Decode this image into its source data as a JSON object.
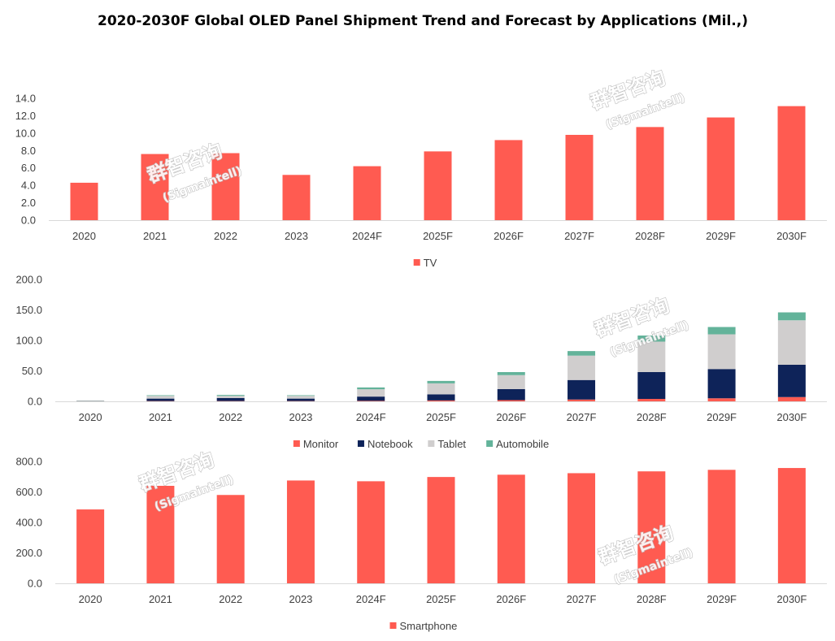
{
  "title": "2020-2030F Global OLED Panel Shipment Trend and Forecast by Applications (Mil.,)",
  "colors": {
    "TV": "#FF5B51",
    "Monitor": "#FF5B51",
    "Notebook": "#0E2359",
    "Tablet": "#D0CECE",
    "Automobile": "#63B39A",
    "Smartphone": "#FF5B51",
    "axis": "#D9D9D9",
    "text": "#404040"
  },
  "watermark": {
    "cn": "群智咨询",
    "en": "(Sigmaintell)"
  },
  "chart_data": [
    {
      "type": "bar",
      "categories": [
        "2020",
        "2021",
        "2022",
        "2023",
        "2024F",
        "2025F",
        "2026F",
        "2027F",
        "2028F",
        "2029F",
        "2030F"
      ],
      "series": [
        {
          "name": "TV",
          "values": [
            4.3,
            7.6,
            7.7,
            5.2,
            6.2,
            7.9,
            9.2,
            9.8,
            10.7,
            11.8,
            13.1
          ]
        }
      ],
      "ylim": [
        0,
        14
      ],
      "yticks": [
        "0.0",
        "2.0",
        "4.0",
        "6.0",
        "8.0",
        "10.0",
        "12.0",
        "14.0"
      ],
      "legend": "bottom"
    },
    {
      "type": "stacked-bar",
      "categories": [
        "2020",
        "2021",
        "2022",
        "2023",
        "2024F",
        "2025F",
        "2026F",
        "2027F",
        "2028F",
        "2029F",
        "2030F"
      ],
      "series": [
        {
          "name": "Monitor",
          "values": [
            0.2,
            0.5,
            0.5,
            0.5,
            0.8,
            1.5,
            2.0,
            3.0,
            4.0,
            5.0,
            7.0
          ]
        },
        {
          "name": "Notebook",
          "values": [
            0.3,
            4.0,
            5.0,
            4.0,
            7.0,
            10.0,
            18.0,
            32.0,
            44.0,
            48.0,
            53.0
          ]
        },
        {
          "name": "Tablet",
          "values": [
            0.5,
            4.5,
            3.5,
            4.5,
            12.0,
            18.0,
            23.0,
            40.0,
            50.0,
            57.0,
            73.0
          ]
        },
        {
          "name": "Automobile",
          "values": [
            0.3,
            1.0,
            1.5,
            1.0,
            3.0,
            4.0,
            5.0,
            7.5,
            10.0,
            12.0,
            13.0
          ]
        }
      ],
      "ylim": [
        0,
        200
      ],
      "yticks": [
        "0.0",
        "50.0",
        "100.0",
        "150.0",
        "200.0"
      ],
      "legend": "bottom"
    },
    {
      "type": "bar",
      "categories": [
        "2020",
        "2021",
        "2022",
        "2023",
        "2024F",
        "2025F",
        "2026F",
        "2027F",
        "2028F",
        "2029F",
        "2030F"
      ],
      "series": [
        {
          "name": "Smartphone",
          "values": [
            485,
            640,
            580,
            675,
            670,
            698,
            713,
            723,
            735,
            745,
            757
          ]
        }
      ],
      "ylim": [
        0,
        800
      ],
      "yticks": [
        "0.0",
        "200.0",
        "400.0",
        "600.0",
        "800.0"
      ],
      "legend": "bottom"
    }
  ]
}
